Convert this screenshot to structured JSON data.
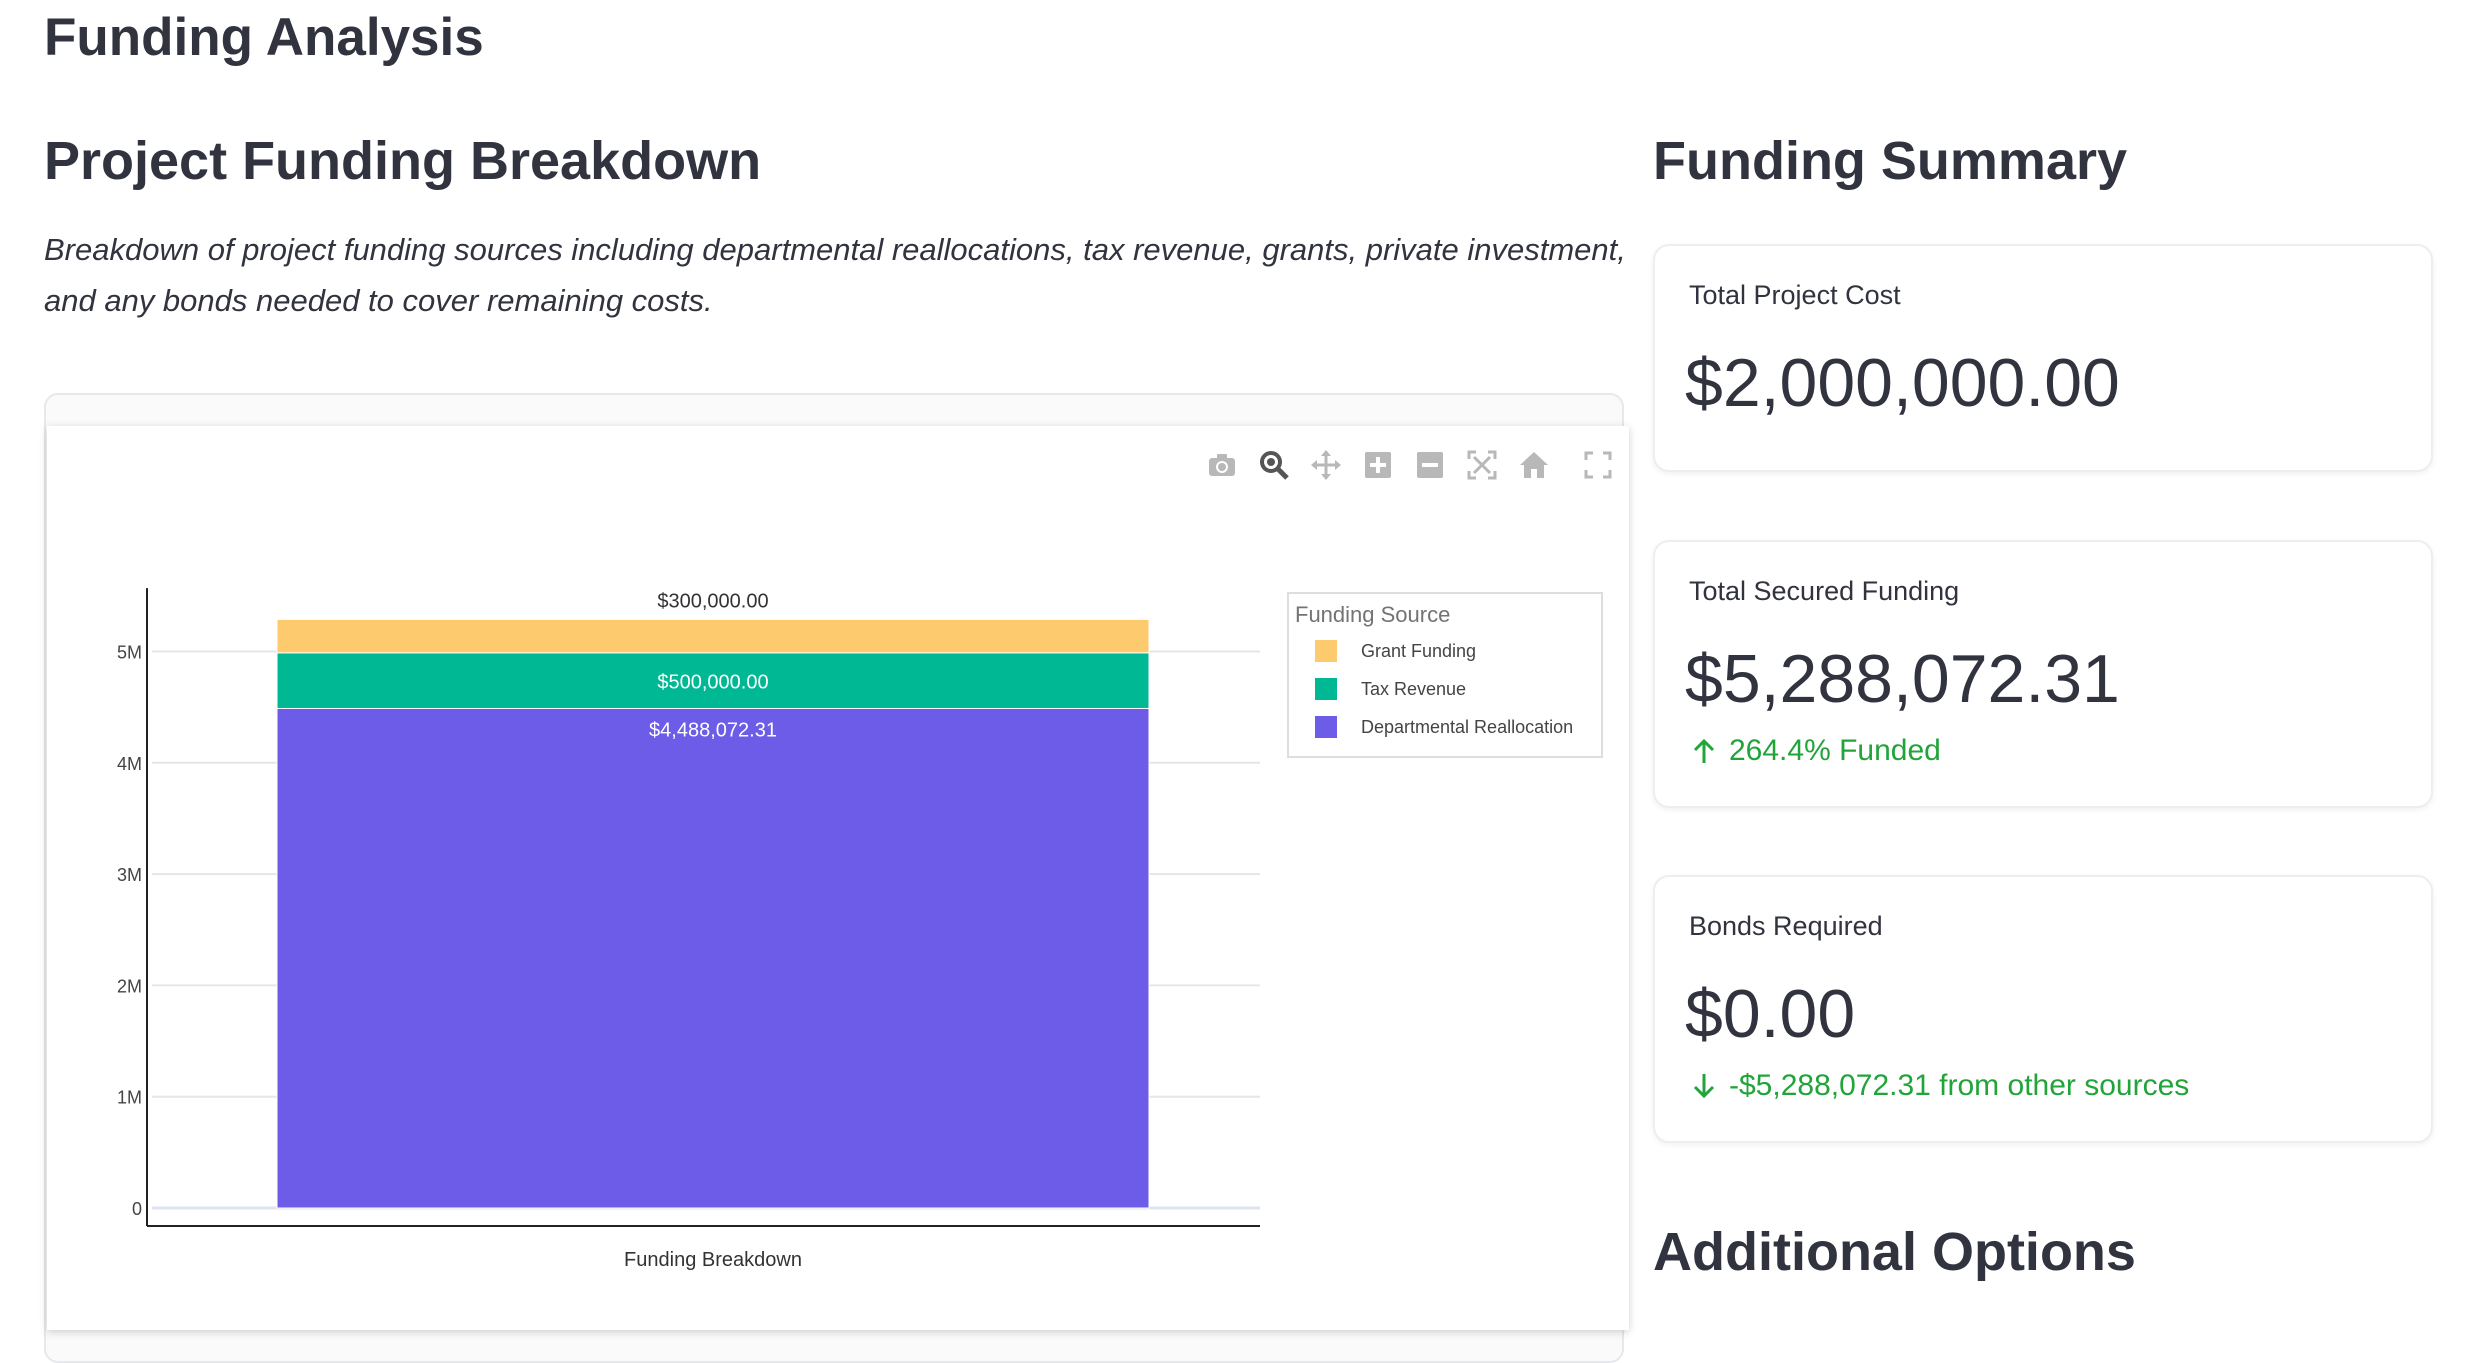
{
  "page": {
    "title": "Funding Analysis"
  },
  "left": {
    "heading": "Project Funding Breakdown",
    "description": "Breakdown of project funding sources including departmental reallocations, tax revenue, grants, private investment, and any bonds needed to cover remaining costs."
  },
  "modebar": {
    "icons": [
      "camera-icon",
      "zoom-icon",
      "pan-icon",
      "zoom-in-icon",
      "zoom-out-icon",
      "autoscale-icon",
      "home-icon",
      "fullscreen-icon"
    ]
  },
  "chart_data": {
    "type": "bar",
    "stacked": true,
    "categories": [
      "Funding Breakdown"
    ],
    "series": [
      {
        "name": "Departmental Reallocation",
        "values": [
          4488072.31
        ],
        "label": "$4,488,072.31",
        "color": "#6c5ce7"
      },
      {
        "name": "Tax Revenue",
        "values": [
          500000
        ],
        "label": "$500,000.00",
        "color": "#00b894"
      },
      {
        "name": "Grant Funding",
        "values": [
          300000
        ],
        "label": "$300,000.00",
        "color": "#fdcb6e"
      }
    ],
    "legend_order": [
      "Grant Funding",
      "Tax Revenue",
      "Departmental Reallocation"
    ],
    "legend_title": "Funding Source",
    "legend_position": "right",
    "y_ticks": [
      "0",
      "1M",
      "2M",
      "3M",
      "4M",
      "5M"
    ],
    "x_tick": "Funding Breakdown",
    "grid": true
  },
  "summary": {
    "heading": "Funding Summary",
    "cards": [
      {
        "label": "Total Project Cost",
        "value": "$2,000,000.00",
        "delta": ""
      },
      {
        "label": "Total Secured Funding",
        "value": "$5,288,072.31",
        "delta": "264.4% Funded",
        "direction": "up"
      },
      {
        "label": "Bonds Required",
        "value": "$0.00",
        "delta": "-$5,288,072.31 from other sources",
        "direction": "down"
      }
    ]
  },
  "additional": {
    "heading": "Additional Options"
  }
}
